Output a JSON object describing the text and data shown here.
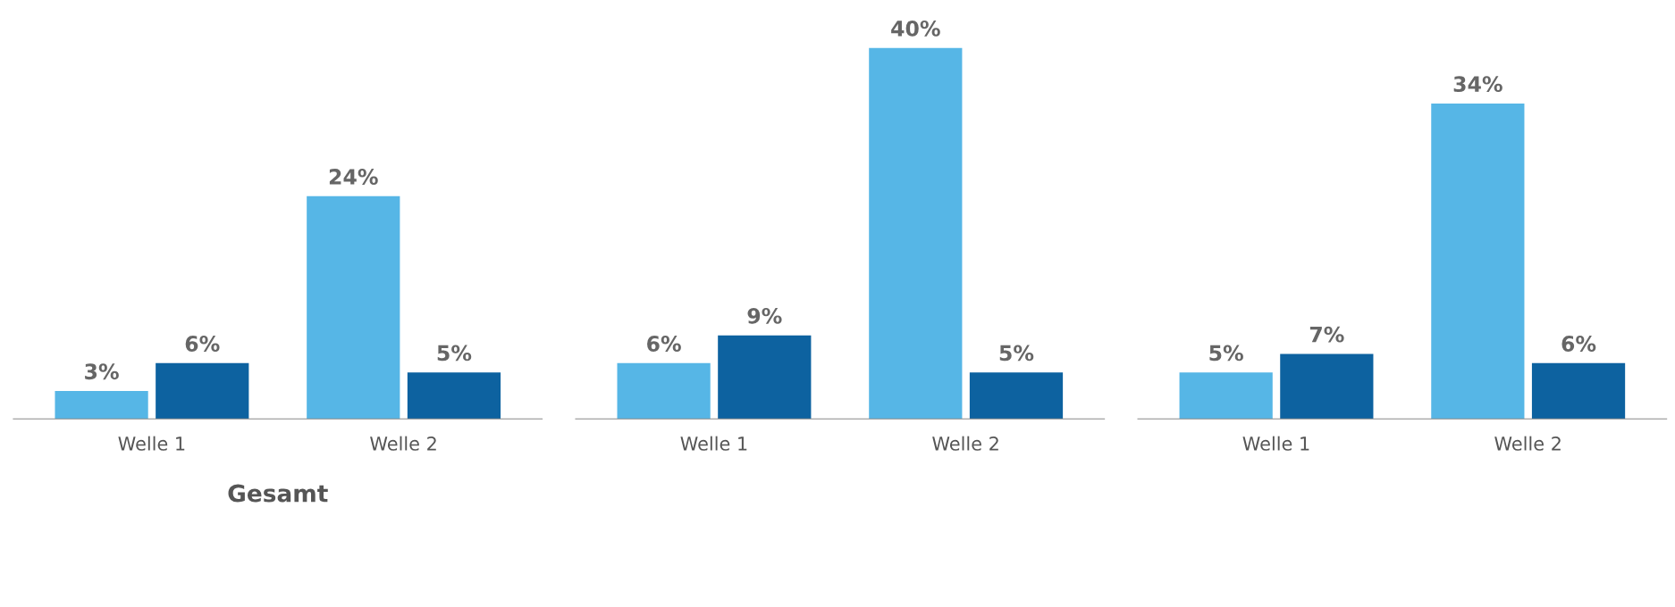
{
  "chart_data": [
    {
      "type": "bar",
      "xlabel": "Gesamt",
      "categories": [
        "Welle 1",
        "Welle 2"
      ],
      "series": [
        {
          "color": "#56b6e6",
          "values": [
            3,
            24
          ],
          "value_labels": [
            "3%",
            "24%"
          ]
        },
        {
          "color": "#0d62a0",
          "values": [
            6,
            5
          ],
          "value_labels": [
            "6%",
            "5%"
          ]
        }
      ],
      "legend": false,
      "grid": false
    },
    {
      "type": "bar",
      "categories": [
        "Welle 1",
        "Welle 2"
      ],
      "series": [
        {
          "color": "#56b6e6",
          "values": [
            6,
            40
          ],
          "value_labels": [
            "6%",
            "40%"
          ]
        },
        {
          "color": "#0d62a0",
          "values": [
            9,
            5
          ],
          "value_labels": [
            "9%",
            "5%"
          ]
        }
      ],
      "legend": false,
      "grid": false
    },
    {
      "type": "bar",
      "categories": [
        "Welle 1",
        "Welle 2"
      ],
      "series": [
        {
          "color": "#56b6e6",
          "values": [
            5,
            34
          ],
          "value_labels": [
            "5%",
            "34%"
          ]
        },
        {
          "color": "#0d62a0",
          "values": [
            7,
            6
          ],
          "value_labels": [
            "7%",
            "6%"
          ]
        }
      ],
      "legend": false,
      "grid": false
    }
  ]
}
